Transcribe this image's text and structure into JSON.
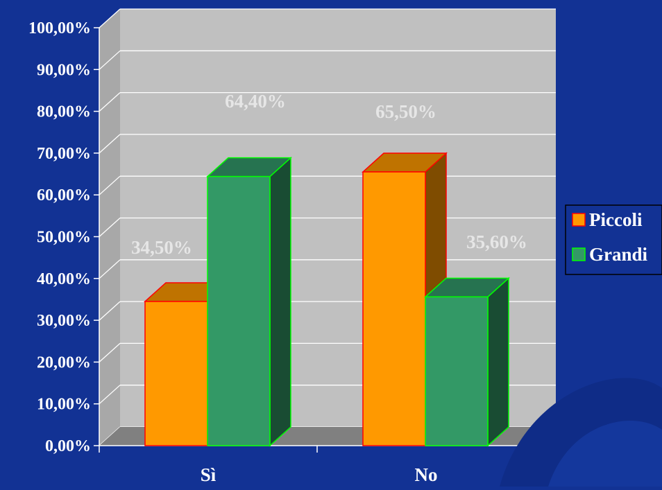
{
  "chart_data": {
    "type": "bar",
    "title": "",
    "xlabel": "",
    "ylabel": "",
    "categories": [
      "Sì",
      "No"
    ],
    "series": [
      {
        "name": "Piccoli",
        "values": [
          34.5,
          65.5
        ]
      },
      {
        "name": "Grandi",
        "values": [
          64.4,
          35.6
        ]
      }
    ],
    "data_labels": [
      [
        "34,50%",
        "65,50%"
      ],
      [
        "64,40%",
        "35,60%"
      ]
    ],
    "ylim": [
      0,
      100
    ],
    "yticks": [
      0,
      10,
      20,
      30,
      40,
      50,
      60,
      70,
      80,
      90,
      100
    ],
    "ytick_labels": [
      "0,00%",
      "10,00%",
      "20,00%",
      "30,00%",
      "40,00%",
      "50,00%",
      "60,00%",
      "70,00%",
      "80,00%",
      "90,00%",
      "100,00%"
    ],
    "grid": true,
    "legend_position": "right",
    "style": "3d-clustered-column",
    "colors": {
      "background": "#123294",
      "plot_wall": "#c0c0c0",
      "floor": "#808080",
      "gridline": "#ffffff",
      "axis": "#ffffff",
      "text": "#ffffff",
      "data_label": "#e6e6e6",
      "series": [
        "#ff9900",
        "#339966"
      ],
      "series_top": [
        "#bf7300",
        "#267350"
      ],
      "series_side": [
        "#7f4c00",
        "#194c33"
      ],
      "series_edge": [
        "#ff0000",
        "#00ff00"
      ]
    }
  }
}
